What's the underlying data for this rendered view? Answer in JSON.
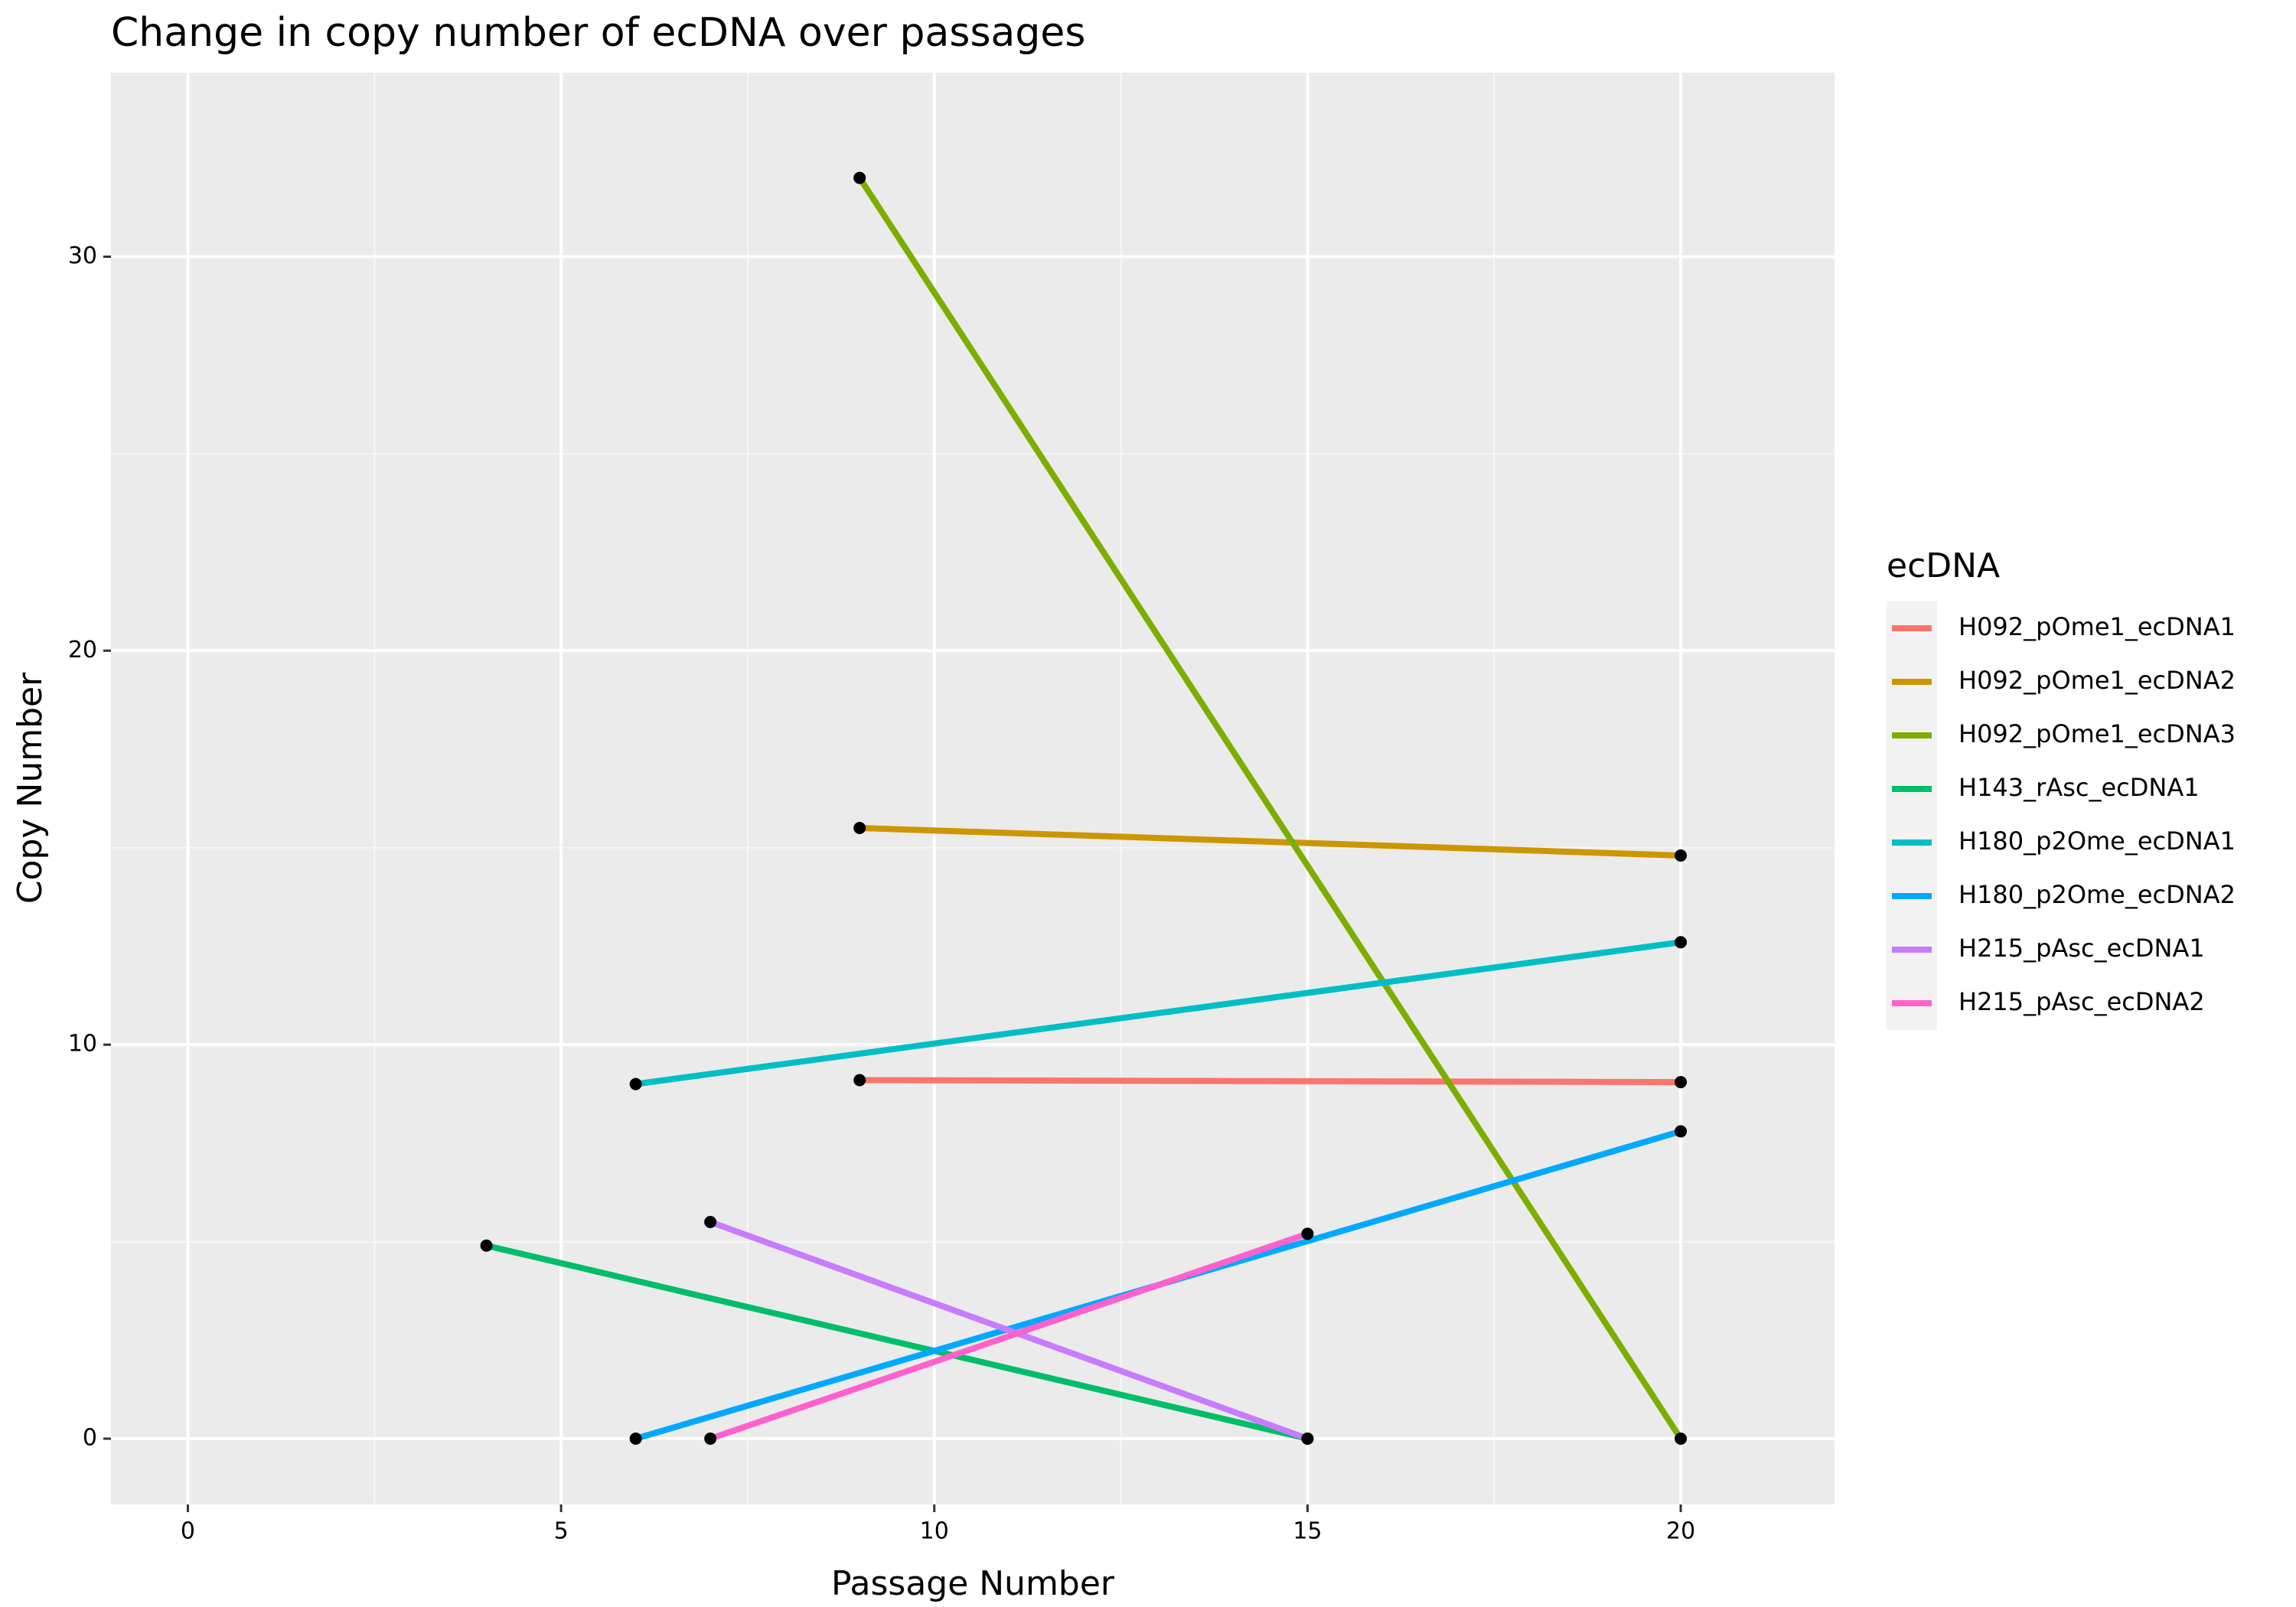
{
  "chart_data": {
    "type": "line",
    "title": "Change in copy number of ecDNA over passages",
    "x_label": "Passage Number",
    "y_label": "Copy Number",
    "legend_title": "ecDNA",
    "legend_position": "right",
    "grid": true,
    "point_color": "#000000",
    "xlim": [
      -1.03,
      22.06
    ],
    "ylim": [
      -1.67,
      34.67
    ],
    "xticks": [
      0,
      5,
      10,
      15,
      20
    ],
    "yticks": [
      0,
      10,
      20,
      30
    ],
    "series": [
      {
        "name": "H092_pOme1_ecDNA1",
        "color": "#F8766D",
        "x": [
          9,
          20
        ],
        "values": [
          9.1,
          9.05
        ]
      },
      {
        "name": "H092_pOme1_ecDNA2",
        "color": "#CD9600",
        "x": [
          9,
          20
        ],
        "values": [
          15.5,
          14.8
        ]
      },
      {
        "name": "H092_pOme1_ecDNA3",
        "color": "#7CAE00",
        "x": [
          9,
          20
        ],
        "values": [
          32,
          0
        ]
      },
      {
        "name": "H143_rAsc_ecDNA1",
        "color": "#00BE67",
        "x": [
          4,
          15
        ],
        "values": [
          4.9,
          0
        ]
      },
      {
        "name": "H180_p2Ome_ecDNA1",
        "color": "#00BFC4",
        "x": [
          6,
          20
        ],
        "values": [
          9,
          12.6
        ]
      },
      {
        "name": "H180_p2Ome_ecDNA2",
        "color": "#00A9FF",
        "x": [
          6,
          20
        ],
        "values": [
          0,
          7.8
        ]
      },
      {
        "name": "H215_pAsc_ecDNA1",
        "color": "#C77CFF",
        "x": [
          7,
          15
        ],
        "values": [
          5.5,
          0
        ]
      },
      {
        "name": "H215_pAsc_ecDNA2",
        "color": "#FF61CC",
        "x": [
          7,
          15
        ],
        "values": [
          0,
          5.2
        ]
      }
    ]
  }
}
